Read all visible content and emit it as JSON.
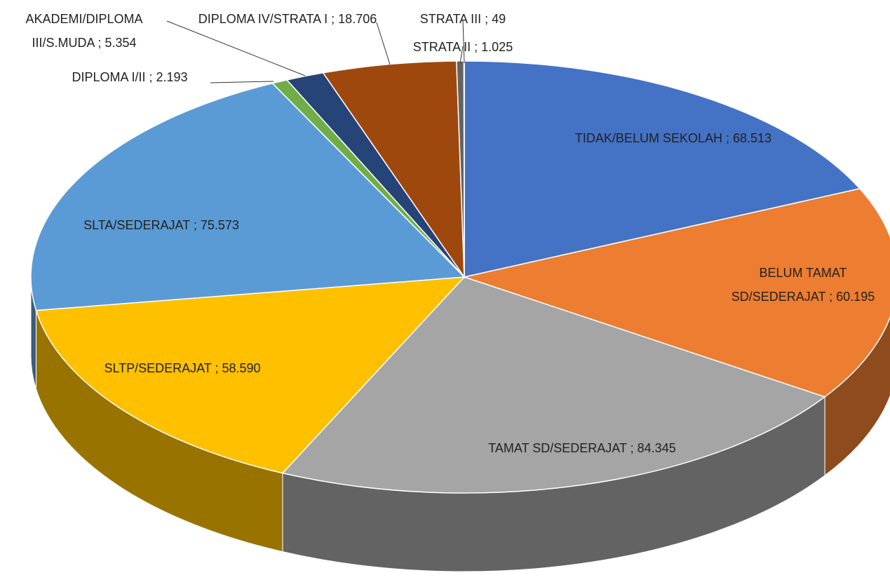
{
  "chart_data": {
    "type": "pie",
    "categories": [
      "TIDAK/BELUM SEKOLAH",
      "BELUM TAMAT SD/SEDERAJAT",
      "TAMAT SD/SEDERAJAT",
      "SLTP/SEDERAJAT",
      "SLTA/SEDERAJAT",
      "DIPLOMA I/II",
      "AKADEMI/DIPLOMA III/S.MUDA",
      "DIPLOMA IV/STRATA I",
      "STRATA II",
      "STRATA III"
    ],
    "values": [
      68513,
      60195,
      84345,
      58590,
      75573,
      2193,
      5354,
      18706,
      1025,
      49
    ],
    "value_labels": [
      "68.513",
      "60.195",
      "84.345",
      "58.590",
      "75.573",
      "2.193",
      "5.354",
      "18.706",
      "1.025",
      "49"
    ],
    "label_separator": " ; ",
    "colors": [
      "#4472c4",
      "#ed7d31",
      "#a5a5a5",
      "#ffc000",
      "#5b9bd5",
      "#70ad47",
      "#264478",
      "#9e480e",
      "#636363",
      "#997300"
    ]
  }
}
